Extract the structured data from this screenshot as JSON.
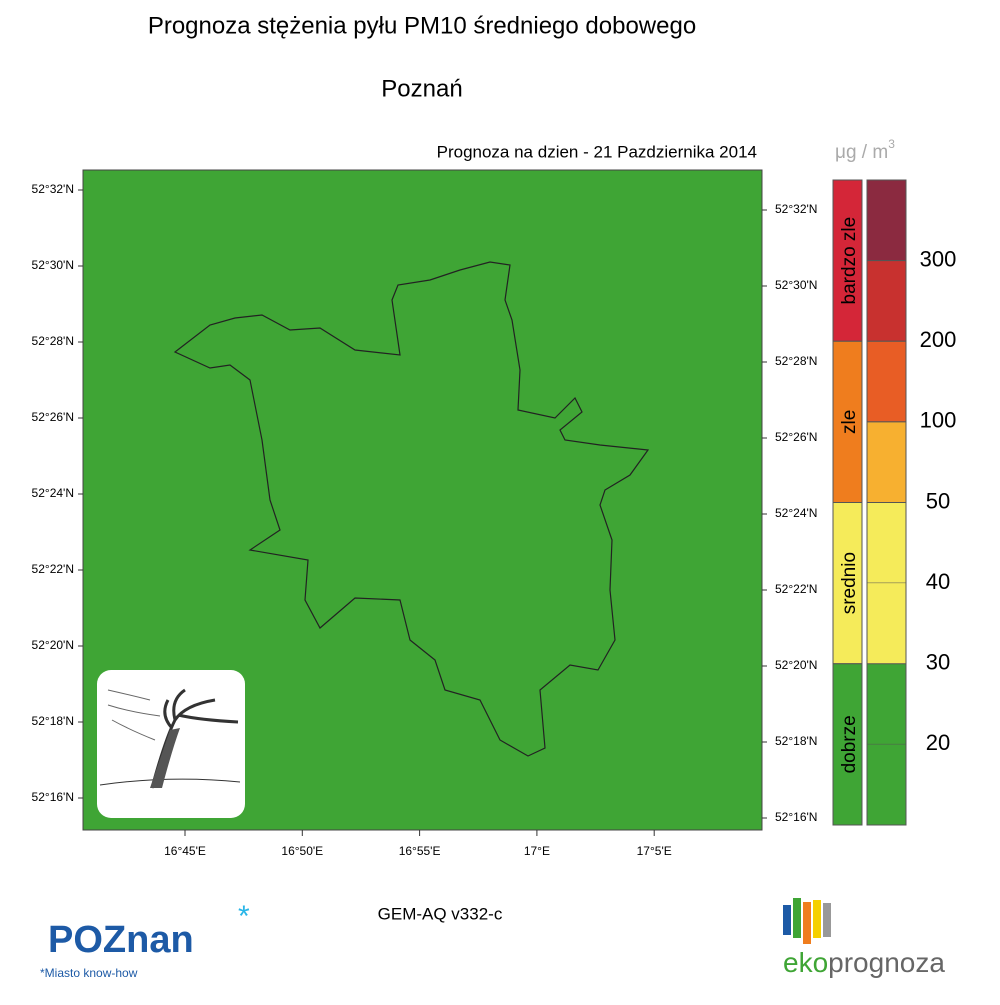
{
  "title": "Prognoza stężenia pyłu PM10 średniego dobowego",
  "city": "Poznań",
  "forecast_date": "Prognoza na dzien -  21 Pazdziernika 2014",
  "unit": {
    "base": "μg / m",
    "exp": "3"
  },
  "map": {
    "background": "#3fa535",
    "lat_labels": [
      "52°32'N",
      "52°30'N",
      "52°28'N",
      "52°26'N",
      "52°24'N",
      "52°22'N",
      "52°20'N",
      "52°18'N",
      "52°16'N"
    ],
    "lon_labels": [
      "16°45'E",
      "16°50'E",
      "16°55'E",
      "17°E",
      "17°5'E"
    ]
  },
  "legend": {
    "categories": [
      {
        "name": "bardzo zle",
        "color": "#d42638"
      },
      {
        "name": "zle",
        "color": "#ef7d1e"
      },
      {
        "name": "srednio",
        "color": "#f5eb5a"
      },
      {
        "name": "dobrze",
        "color": "#3fa535"
      }
    ],
    "scale_colors": [
      "#8b2a40",
      "#c8312f",
      "#e85d25",
      "#f7b030",
      "#f5eb5a",
      "#f5eb5a",
      "#3fa535",
      "#3fa535"
    ],
    "levels": [
      300,
      200,
      100,
      50,
      40,
      30,
      20
    ]
  },
  "model": "GEM-AQ v332-c",
  "logos": {
    "poznan": "POZnan",
    "poznan_tagline": "*Miasto know-how",
    "eko": "eko",
    "prognoza": "prognoza"
  }
}
